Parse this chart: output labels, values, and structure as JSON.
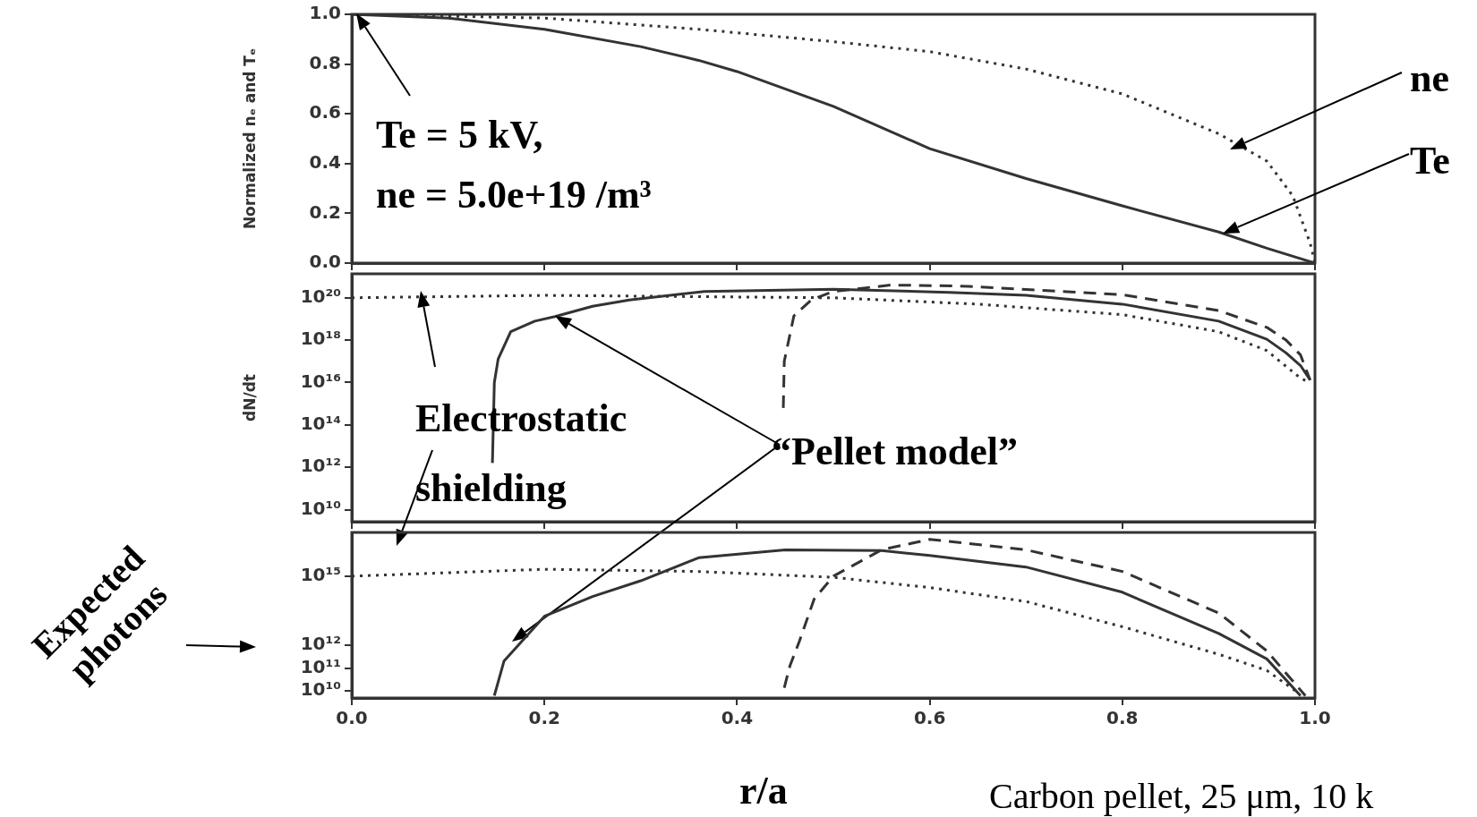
{
  "chart_data": [
    {
      "type": "line",
      "ylabel": "Normalized nₑ and Tₑ",
      "xlim": [
        0,
        1
      ],
      "xticks": [
        0,
        0.2,
        0.4,
        0.6,
        0.8,
        1.0
      ],
      "ylim": [
        0,
        1
      ],
      "yticks": [
        {
          "value": 0,
          "label": "0.0"
        },
        0.2,
        0.4,
        0.6,
        0.8,
        {
          "value": 1,
          "label": "1.0"
        }
      ],
      "tick_labels": "y",
      "annotations": [
        "Te = 5 kV,",
        "ne = 5.0e+19 /m³"
      ],
      "series": [
        {
          "name": "ne",
          "color": "#333333",
          "line_style": "dotted",
          "x": [
            0,
            0.2,
            0.36,
            0.5,
            0.6,
            0.7,
            0.8,
            0.9,
            0.95,
            0.977,
            0.995,
            1.0
          ],
          "values": [
            1.0,
            0.985,
            0.94,
            0.89,
            0.85,
            0.78,
            0.68,
            0.52,
            0.41,
            0.27,
            0.08,
            0
          ]
        },
        {
          "name": "Te",
          "color": "#333333",
          "line_style": "solid",
          "x": [
            0,
            0.1,
            0.2,
            0.3,
            0.36,
            0.4,
            0.5,
            0.6,
            0.7,
            0.8,
            0.9,
            0.95,
            1.0
          ],
          "values": [
            1.0,
            0.985,
            0.94,
            0.87,
            0.815,
            0.77,
            0.63,
            0.46,
            0.34,
            0.23,
            0.125,
            0.06,
            0
          ]
        }
      ]
    },
    {
      "type": "line",
      "ylabel": "dN/dt",
      "log": true,
      "xlim": [
        0,
        1
      ],
      "xticks": [
        0,
        0.2,
        0.4,
        0.6,
        0.8,
        1.0
      ],
      "ylim": [
        2700000000.0,
        1.35e+21
      ],
      "yticks": [
        {
          "value": 10000000000.0,
          "label": "10¹⁰"
        },
        {
          "value": 1000000000000.0,
          "label": "10¹²"
        },
        {
          "value": 100000000000000.0,
          "label": "10¹⁴"
        },
        {
          "value": 1e+16,
          "label": "10¹⁶"
        },
        {
          "value": 1e+18,
          "label": "10¹⁸"
        },
        {
          "value": 1e+20,
          "label": "10²⁰"
        }
      ],
      "tick_labels": "y",
      "annotations": [
        "Electrostatic shielding",
        "“Pellet model”"
      ],
      "series": [
        {
          "color": "#333333",
          "line_style": "dotted",
          "x": [
            0,
            0.2,
            0.5,
            0.65,
            0.8,
            0.9,
            0.95,
            0.985,
            0.995
          ],
          "values": [
            1e+20,
            1.3e+20,
            1e+20,
            5e+19,
            1.6e+19,
            2.5e+18,
            3.2e+17,
            1.6e+16,
            1e+16
          ]
        },
        {
          "color": "#333333",
          "line_style": "solid",
          "x": [
            0.146,
            0.148,
            0.152,
            0.165,
            0.19,
            0.211,
            0.25,
            0.288,
            0.366,
            0.5,
            0.62,
            0.7,
            0.8,
            0.9,
            0.95,
            0.97,
            0.985,
            0.995
          ],
          "values": [
            1600000000000.0,
            1e+16,
            1.3e+17,
            2.5e+18,
            7.9e+18,
            1.3e+19,
            4e+19,
            7.9e+19,
            2e+20,
            2.5e+20,
            1.8e+20,
            1.3e+20,
            5e+19,
            7.9e+18,
            1.1e+18,
            2.5e+17,
            6.3e+16,
            1.3e+16
          ]
        },
        {
          "color": "#333333",
          "line_style": "dashed",
          "x": [
            0.448,
            0.449,
            0.459,
            0.477,
            0.5,
            0.56,
            0.64,
            0.8,
            0.9,
            0.95,
            0.97,
            0.985,
            0.995
          ],
          "values": [
            630000000000000.0,
            1e+17,
            1.4e+19,
            7.9e+19,
            2e+20,
            4e+20,
            3.5e+20,
            1.4e+20,
            2.5e+19,
            4e+18,
            1e+18,
            2e+17,
            1.3e+16
          ]
        }
      ]
    },
    {
      "type": "line",
      "ylabel": "Expected photons",
      "xlabel": "r/a",
      "log": true,
      "xlim": [
        0,
        1
      ],
      "xticks": [
        {
          "value": 0,
          "label": "0.0"
        },
        0.2,
        0.4,
        0.6,
        0.8,
        {
          "value": 1,
          "label": "1.0"
        }
      ],
      "ylim": [
        5000000000.0,
        8e+16
      ],
      "yticks": [
        {
          "value": 10000000000.0,
          "label": "10¹⁰"
        },
        {
          "value": 100000000000.0,
          "label": "10¹¹"
        },
        {
          "value": 1000000000000.0,
          "label": "10¹²"
        },
        {
          "value": 1000000000000000.0,
          "label": "10¹⁵"
        }
      ],
      "annotations": [
        "Carbon pellet, 25 μm, 10 k"
      ],
      "series": [
        {
          "color": "#333333",
          "line_style": "dotted",
          "x": [
            0,
            0.2,
            0.36,
            0.5,
            0.6,
            0.7,
            0.8,
            0.9,
            0.95,
            0.98
          ],
          "values": [
            1000000000000000.0,
            2000000000000000.0,
            1600000000000000.0,
            890000000000000.0,
            320000000000000.0,
            79000000000000.0,
            6300000000000.0,
            400000000000.0,
            79000000000.0,
            10000000000.0
          ]
        },
        {
          "color": "#333333",
          "line_style": "solid",
          "x": [
            0.148,
            0.158,
            0.2,
            0.25,
            0.3,
            0.36,
            0.45,
            0.55,
            0.6,
            0.7,
            0.8,
            0.9,
            0.95,
            0.985
          ],
          "values": [
            6300000000.0,
            200000000000.0,
            18000000000000.0,
            130000000000000.0,
            630000000000000.0,
            6300000000000000.0,
            1.4e+16,
            1.3e+16,
            7900000000000000.0,
            2500000000000000.0,
            200000000000000.0,
            3200000000000.0,
            250000000000.0,
            6300000000.0
          ]
        },
        {
          "color": "#333333",
          "line_style": "dashed",
          "x": [
            0.449,
            0.455,
            0.465,
            0.48,
            0.5,
            0.55,
            0.6,
            0.7,
            0.8,
            0.9,
            0.95,
            0.99
          ],
          "values": [
            14000000000.0,
            130000000000.0,
            1600000000000.0,
            100000000000000.0,
            1000000000000000.0,
            1.4e+16,
            4e+16,
            1.4e+16,
            1600000000000000.0,
            25000000000000.0,
            560000000000.0,
            6300000000.0
          ]
        }
      ]
    }
  ]
}
